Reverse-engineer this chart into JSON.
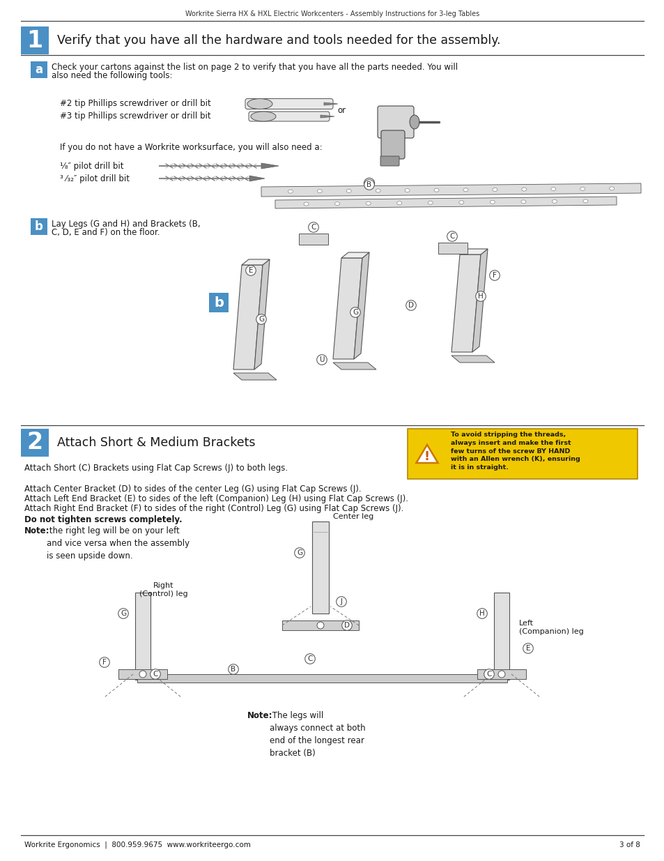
{
  "page_title": "Workrite Sierra HX & HXL Electric Workcenters - Assembly Instructions for 3-leg Tables",
  "footer_left": "Workrite Ergonomics  |  800.959.9675  www.workriteergo.com",
  "footer_right": "3 of 8",
  "bg_color": "#ffffff",
  "blue_color": "#4a90c4",
  "yellow_color": "#f0c800",
  "step1_number": "1",
  "step1_title": "Verify that you have all the hardware and tools needed for the assembly.",
  "step1a_label": "a",
  "step1a_text1": "Check your cartons against the list on page 2 to verify that you have all the parts needed. You will",
  "step1a_text2": "also need the following tools:",
  "step1a_tools_line1": "#2 tip Phillips screwdriver or drill bit",
  "step1a_tools_line2": "#3 tip Phillips screwdriver or drill bit",
  "step1a_or": "or",
  "step1a_worksurface": "If you do not have a Workrite worksurface, you will also need a:",
  "step1a_drill1": "¹⁄₈″ pilot drill bit",
  "step1a_drill2": "³ ⁄₃₂″ pilot drill bit",
  "step1b_label": "b",
  "step1b_text1": "Lay Legs (G and H) and Brackets (B,",
  "step1b_text2": "C, D, E and F) on the floor.",
  "step2_number": "2",
  "step2_title": "Attach Short & Medium Brackets",
  "step2_warning_bold": "To avoid stripping the threads,\nalways insert and make the first\nfew turns of the screw BY HAND\nwith an Allen wrench (K), ensuring\nit is in straight.",
  "step2_text1": "Attach Short (C) Brackets using Flat Cap Screws (J) to both legs.",
  "step2_text2a": "Attach Center Bracket (D) to sides of the center Leg (G) using Flat Cap Screws (J).",
  "step2_text2b": "Attach Left End Bracket (E) to sides of the left (Companion) Leg (H) using Flat Cap Screws (J).",
  "step2_text2c": "Attach Right End Bracket (F) to sides of the right (Control) Leg (G) using Flat Cap Screws (J).",
  "step2_text3_bold": "Do not tighten screws completely.",
  "step2_note_bold": "Note:",
  "step2_note_rest": " the right leg will be on your left\nand vice versa when the assembly\nis seen upside down.",
  "center_leg_label": "Center leg",
  "left_leg_label": "Left\n(Companion) leg",
  "right_leg_label": "Right\n(Control) leg",
  "note2_bold": "Note:",
  "note2_rest": " The legs will\nalways connect at both\nend of the longest rear\nbracket (B)"
}
